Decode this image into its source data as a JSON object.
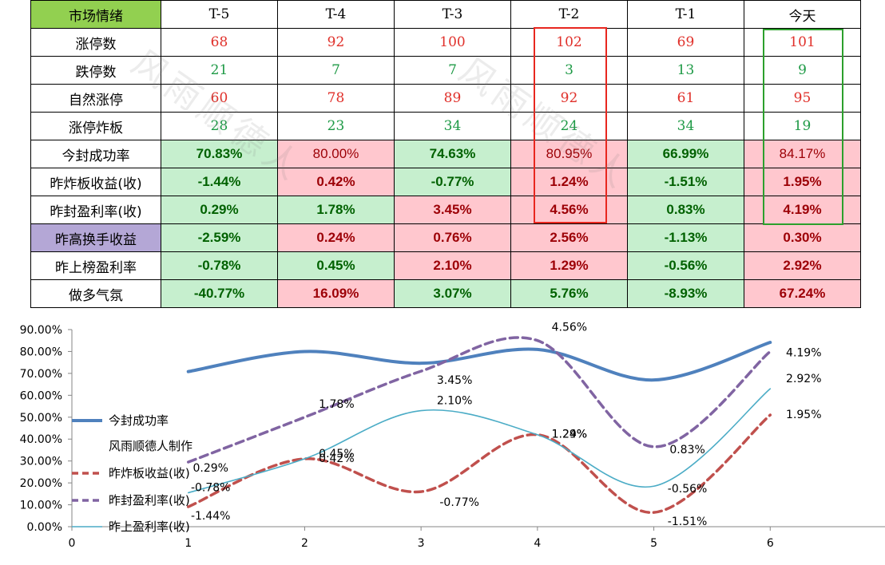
{
  "table": {
    "header": {
      "label": "市场情绪",
      "cols": [
        "T-5",
        "T-4",
        "T-3",
        "T-2",
        "T-1",
        "今天"
      ]
    },
    "rows": [
      {
        "label": "涨停数",
        "values": [
          "68",
          "92",
          "100",
          "102",
          "69",
          "101"
        ]
      },
      {
        "label": "跌停数",
        "values": [
          "21",
          "7",
          "7",
          "3",
          "13",
          "9"
        ]
      },
      {
        "label": "自然涨停",
        "values": [
          "60",
          "78",
          "89",
          "92",
          "61",
          "95"
        ]
      },
      {
        "label": "涨停炸板",
        "values": [
          "28",
          "23",
          "34",
          "24",
          "34",
          "19"
        ]
      },
      {
        "label": "今封成功率",
        "values": [
          "70.83%",
          "80.00%",
          "74.63%",
          "80.95%",
          "66.99%",
          "84.17%"
        ]
      },
      {
        "label": "昨炸板收益(收)",
        "values": [
          "-1.44%",
          "0.42%",
          "-0.77%",
          "1.24%",
          "-1.51%",
          "1.95%"
        ]
      },
      {
        "label": "昨封盈利率(收)",
        "values": [
          "0.29%",
          "1.78%",
          "3.45%",
          "4.56%",
          "0.83%",
          "4.19%"
        ]
      },
      {
        "label": "昨高换手收益",
        "values": [
          "-2.59%",
          "0.24%",
          "0.76%",
          "2.56%",
          "-1.13%",
          "0.30%"
        ]
      },
      {
        "label": "昨上榜盈利率",
        "values": [
          "-0.78%",
          "0.45%",
          "2.10%",
          "1.29%",
          "-0.56%",
          "2.92%"
        ]
      },
      {
        "label": "做多气氛",
        "values": [
          "-40.77%",
          "16.09%",
          "3.07%",
          "5.76%",
          "-8.93%",
          "67.24%"
        ]
      }
    ]
  },
  "watermark": "风雨顺德人",
  "colors": {
    "header_green": "#92d050",
    "cell_green": "#c6efce",
    "cell_pink": "#ffc7ce",
    "highlight_red": "#e8271f",
    "highlight_green": "#2ca02c"
  },
  "chart_data": {
    "type": "line",
    "x": [
      1,
      2,
      3,
      4,
      5,
      6
    ],
    "xlim": [
      0,
      7
    ],
    "ylim": [
      0,
      90
    ],
    "xticks": [
      "0",
      "1",
      "2",
      "3",
      "4",
      "5",
      "6"
    ],
    "yticks": [
      "0.00%",
      "10.00%",
      "20.00%",
      "30.00%",
      "40.00%",
      "50.00%",
      "60.00%",
      "70.00%",
      "80.00%",
      "90.00%"
    ],
    "series": [
      {
        "name": "今封成功率",
        "values": [
          70.83,
          80.0,
          74.63,
          80.95,
          66.99,
          84.17
        ],
        "color": "#4f81bd",
        "style": "solid-thick",
        "labels": []
      },
      {
        "name": "昨炸板收益(收)",
        "values": [
          9.1,
          31.0,
          16.0,
          42.0,
          6.5,
          51.0
        ],
        "color": "#c0504d",
        "style": "dashed",
        "labels": [
          "-1.44%",
          "0.42%",
          "-0.77%",
          "1.24%",
          "-1.51%",
          "1.95%"
        ]
      },
      {
        "name": "昨封盈利率(收)",
        "values": [
          29.5,
          50.0,
          71.0,
          85.0,
          36.5,
          80.0
        ],
        "color": "#8064a2",
        "style": "dashed",
        "labels": [
          "0.29%",
          "1.78%",
          "3.45%",
          "4.56%",
          "0.83%",
          "4.19%"
        ]
      },
      {
        "name": "昨上盈利率(收)",
        "values": [
          15.5,
          31.0,
          53.0,
          42.0,
          18.5,
          63.0
        ],
        "color": "#4bacc6",
        "style": "thin",
        "labels": [
          "-0.78%",
          "0.45%",
          "2.10%",
          "1.29%",
          "-0.56%",
          "2.92%"
        ]
      }
    ],
    "legend": {
      "placement": "left-inside",
      "entries": [
        "今封成功率",
        "风雨顺德人制作",
        "昨炸板收益(收)",
        "昨封盈利率(收)",
        "昨上盈利率(收)"
      ]
    }
  }
}
